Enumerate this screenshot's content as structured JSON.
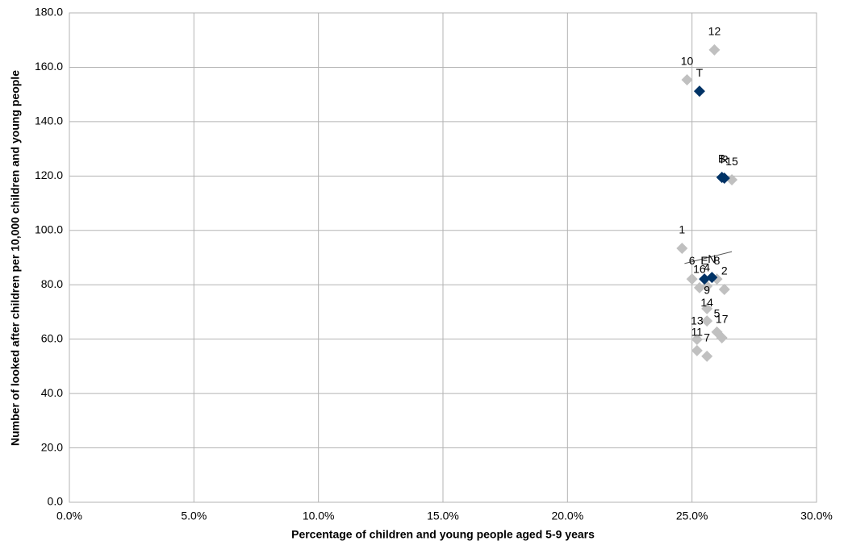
{
  "chart_data": {
    "type": "scatter",
    "x_label": "Percentage of children and young people aged 5-9 years",
    "y_label": "Number of looked after children per 10,000 children and young people",
    "xlim": [
      0,
      30
    ],
    "ylim": [
      0,
      180
    ],
    "xticks": [
      {
        "value": 0,
        "label": "0.0%"
      },
      {
        "value": 5,
        "label": "5.0%"
      },
      {
        "value": 10,
        "label": "10.0%"
      },
      {
        "value": 15,
        "label": "15.0%"
      },
      {
        "value": 20,
        "label": "20.0%"
      },
      {
        "value": 25,
        "label": "25.0%"
      },
      {
        "value": 30,
        "label": "30.0%"
      }
    ],
    "yticks": [
      {
        "value": 0,
        "label": "0.0"
      },
      {
        "value": 20,
        "label": "20.0"
      },
      {
        "value": 40,
        "label": "40.0"
      },
      {
        "value": 60,
        "label": "60.0"
      },
      {
        "value": 80,
        "label": "80.0"
      },
      {
        "value": 100,
        "label": "100.0"
      },
      {
        "value": 120,
        "label": "120.0"
      },
      {
        "value": 140,
        "label": "140.0"
      },
      {
        "value": 160,
        "label": "160.0"
      },
      {
        "value": 180,
        "label": "180.0"
      }
    ],
    "grid": true,
    "series": [
      {
        "color": "#c0c0c0",
        "labels": [
          "12",
          "10",
          "15",
          "1",
          "6",
          "8",
          "16",
          "2",
          "4",
          "9",
          "14",
          "5",
          "17",
          "13",
          "11",
          "7"
        ],
        "x": [
          25.9,
          24.8,
          26.6,
          24.6,
          25.0,
          26.0,
          25.3,
          26.3,
          25.6,
          25.6,
          25.6,
          26.0,
          26.2,
          25.2,
          25.2,
          25.6
        ],
        "values": [
          166.4,
          155.4,
          118.6,
          93.4,
          82.1,
          82.1,
          78.9,
          78.3,
          79.5,
          71.2,
          66.7,
          62.6,
          60.5,
          59.9,
          55.8,
          53.7
        ]
      },
      {
        "color": "#003366",
        "labels": [
          "T",
          "B",
          "R",
          "E",
          "N"
        ],
        "x": [
          25.3,
          26.2,
          26.3,
          25.5,
          25.8
        ],
        "values": [
          151.2,
          119.5,
          119.2,
          82.1,
          82.7
        ]
      }
    ],
    "trendline": {
      "color": "#555555",
      "x": [
        24.7,
        26.6
      ],
      "values": [
        87.8,
        92.2
      ]
    }
  }
}
